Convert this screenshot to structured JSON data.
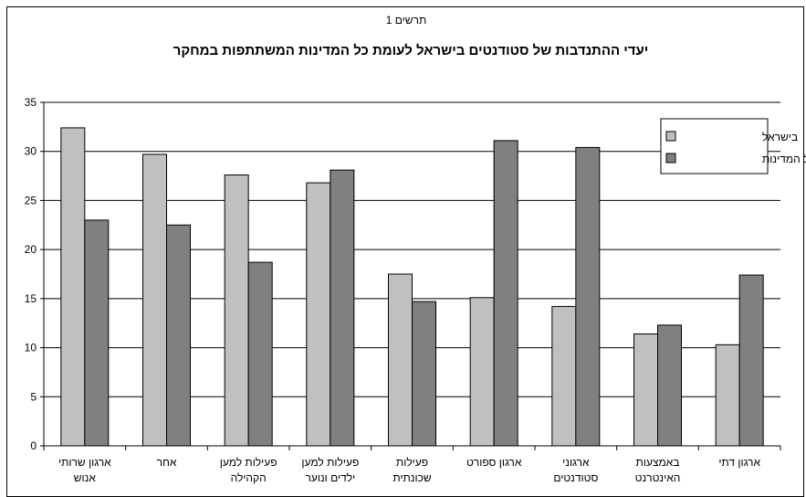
{
  "chart_data": {
    "type": "bar",
    "subtitle": "תרשים 1",
    "title": "יעדי ההתנדבות של סטודנטים בישראל לעומת כל המדינות המשתתפות במחקר",
    "xlabel": "",
    "ylabel": "",
    "ylim": [
      0,
      35
    ],
    "yticks": [
      0,
      5,
      10,
      15,
      20,
      25,
      30,
      35
    ],
    "grid": true,
    "legend_position": "top-right",
    "categories": [
      [
        "ארגון שרותי",
        "אנוש"
      ],
      [
        "אחר"
      ],
      [
        "פעילות למען",
        "הקהילה"
      ],
      [
        "פעילות למען",
        "ילדים ונוער"
      ],
      [
        "פעילות",
        "שכונתית"
      ],
      [
        "ארגון ספורט"
      ],
      [
        "ארגוני",
        "סטודנטים"
      ],
      [
        "באמצעות",
        "האינטרנט"
      ],
      [
        "ארגון דתי"
      ]
    ],
    "series": [
      {
        "name": "בישראל",
        "color": "#c0c0c0",
        "values": [
          32.4,
          29.7,
          27.6,
          26.8,
          17.5,
          15.1,
          14.2,
          11.4,
          10.3
        ]
      },
      {
        "name": "בכל המדינות",
        "color": "#808080",
        "values": [
          23.0,
          22.5,
          18.7,
          28.1,
          14.7,
          31.1,
          30.4,
          12.3,
          17.4
        ]
      }
    ]
  }
}
